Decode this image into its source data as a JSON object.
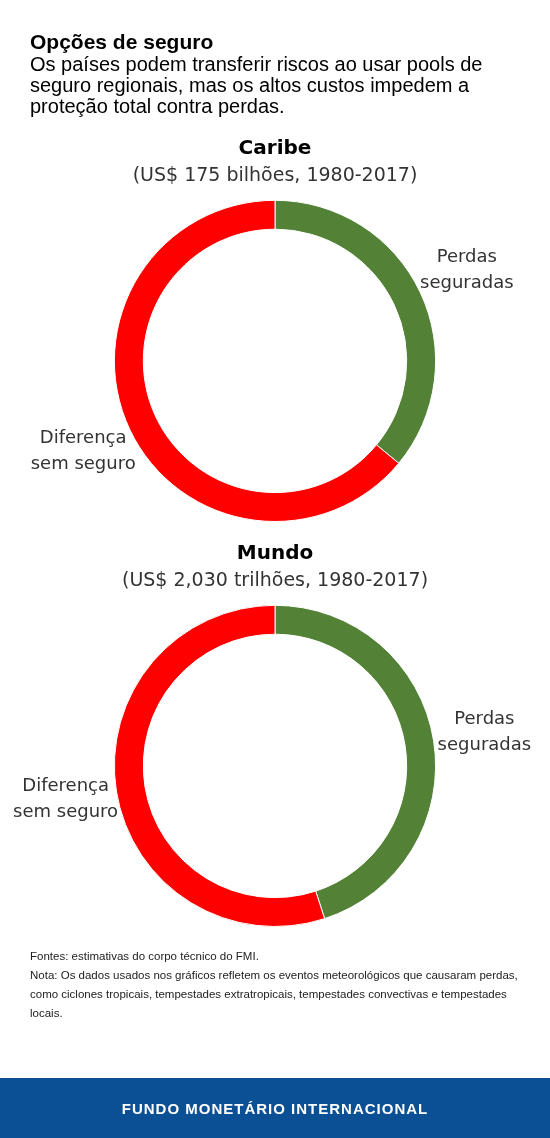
{
  "chart_data": [
    {
      "type": "other",
      "title": "Opções de seguro",
      "subtitle": "Os países podem transferir riscos ao usar pools de seguro regionais, mas os altos custos impedem a proteção total contra perdas."
    },
    {
      "type": "donut",
      "title": "Caribe",
      "subtitle": "(US$ 175 bilhões, 1980-2017)",
      "categories": [
        "Perdas seguradas",
        "Diferença sem seguro"
      ],
      "values": [
        36,
        64
      ],
      "colors": [
        "#538135",
        "#ff0000"
      ]
    },
    {
      "type": "donut",
      "title": "Mundo",
      "subtitle": "(US$ 2,030 trilhões, 1980-2017)",
      "categories": [
        "Perdas seguradas",
        "Diferença sem seguro"
      ],
      "values": [
        45,
        55
      ],
      "colors": [
        "#538135",
        "#ff0000"
      ]
    },
    {
      "type": "other",
      "annotations": [
        "Fontes: estimativas do corpo técnico do FMI.",
        "Nota: Os dados usados nos gráficos refletem os eventos meteorológicos que causaram perdas, como ciclones tropicais, tempestades extratropicais, tempestades convectivas e tempestades locais.",
        "FUNDO MONETÁRIO INTERNACIONAL"
      ]
    }
  ]
}
